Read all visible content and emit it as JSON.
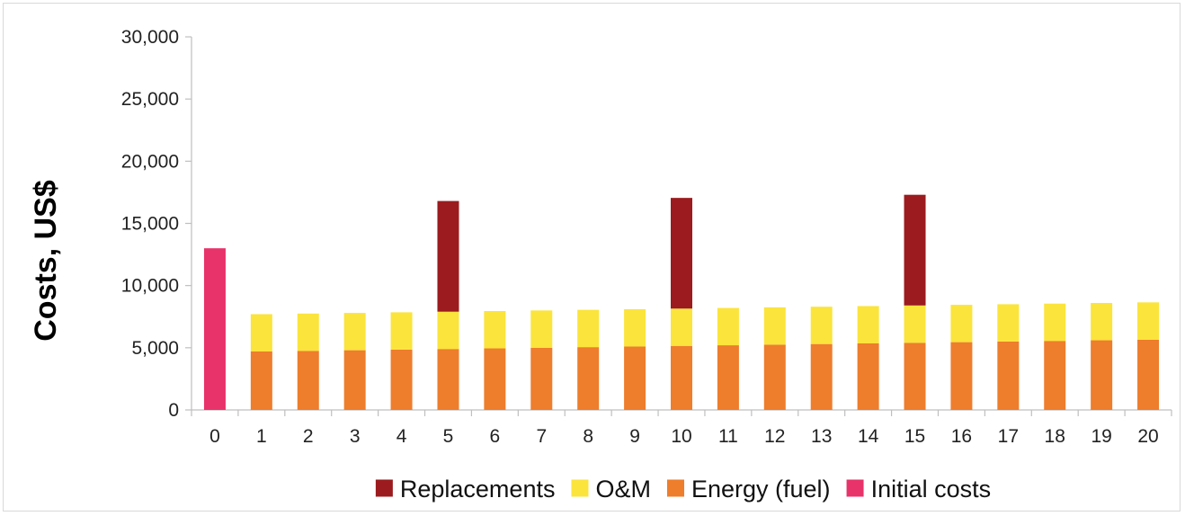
{
  "chart_data": {
    "type": "bar",
    "stacked": true,
    "title": "",
    "xlabel": "",
    "ylabel": "Costs, US$",
    "ylim": [
      0,
      30000
    ],
    "yticks": [
      0,
      5000,
      10000,
      15000,
      20000,
      25000,
      30000
    ],
    "ytick_labels": [
      "0",
      "5,000",
      "10,000",
      "15,000",
      "20,000",
      "25,000",
      "30,000"
    ],
    "categories": [
      "0",
      "1",
      "2",
      "3",
      "4",
      "5",
      "6",
      "7",
      "8",
      "9",
      "10",
      "11",
      "12",
      "13",
      "14",
      "15",
      "16",
      "17",
      "18",
      "19",
      "20"
    ],
    "series": [
      {
        "name": "Initial costs",
        "color": "#e8336a",
        "values": [
          13000,
          0,
          0,
          0,
          0,
          0,
          0,
          0,
          0,
          0,
          0,
          0,
          0,
          0,
          0,
          0,
          0,
          0,
          0,
          0,
          0
        ]
      },
      {
        "name": "Energy (fuel)",
        "color": "#ee7d2c",
        "values": [
          0,
          4700,
          4750,
          4800,
          4850,
          4900,
          4950,
          5000,
          5050,
          5100,
          5150,
          5200,
          5250,
          5300,
          5350,
          5400,
          5450,
          5500,
          5550,
          5600,
          5650
        ]
      },
      {
        "name": "O&M",
        "color": "#fbe43c",
        "values": [
          0,
          3000,
          3000,
          3000,
          3000,
          3000,
          3000,
          3000,
          3000,
          3000,
          3000,
          3000,
          3000,
          3000,
          3000,
          3000,
          3000,
          3000,
          3000,
          3000,
          3000
        ]
      },
      {
        "name": "Replacements",
        "color": "#9b1b1e",
        "values": [
          0,
          0,
          0,
          0,
          0,
          8900,
          0,
          0,
          0,
          0,
          8900,
          0,
          0,
          0,
          0,
          8900,
          0,
          0,
          0,
          0,
          0
        ]
      }
    ],
    "legend": {
      "position": "bottom",
      "order": [
        "Replacements",
        "O&M",
        "Energy (fuel)",
        "Initial costs"
      ]
    },
    "grid": false,
    "axis_color": "#bfbfbf"
  }
}
